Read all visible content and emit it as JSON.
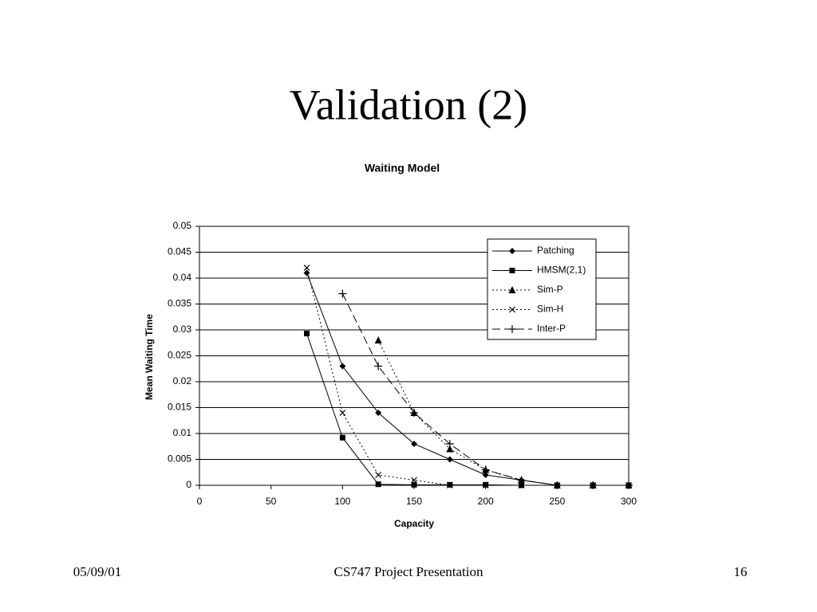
{
  "slide": {
    "title": "Validation (2)",
    "footer_left": "05/09/01",
    "footer_center": "CS747 Project Presentation",
    "footer_right": "16"
  },
  "chart_data": {
    "type": "line",
    "title": "Waiting Model",
    "x_label": "Capacity",
    "y_label": "Mean Waiting Time",
    "x": [
      75,
      100,
      125,
      150,
      175,
      200,
      225,
      250,
      275,
      300
    ],
    "series": [
      {
        "name": "Patching",
        "color": "#000000",
        "marker": "diamond",
        "line": "solid",
        "values": [
          0.041,
          0.023,
          0.014,
          0.008,
          0.005,
          0.002,
          0.001,
          0,
          0,
          0
        ]
      },
      {
        "name": "HMSM(2,1)",
        "color": "#000000",
        "marker": "square",
        "line": "solid",
        "values": [
          0.0293,
          0.0092,
          0.0002,
          0.0001,
          0.0001,
          0.0001,
          0,
          0,
          0,
          0
        ]
      },
      {
        "name": "Sim-P",
        "color": "#000000",
        "marker": "triangle",
        "line": "dotted",
        "values": [
          null,
          null,
          0.028,
          0.014,
          0.007,
          0.003,
          0.001,
          0,
          0,
          0
        ]
      },
      {
        "name": "Sim-H",
        "color": "#000000",
        "marker": "cross",
        "line": "dotted",
        "values": [
          0.042,
          0.014,
          0.002,
          0.001,
          0,
          0,
          0,
          0,
          0,
          0
        ]
      },
      {
        "name": "Inter-P",
        "color": "#000000",
        "marker": "plus",
        "line": "dashed",
        "values": [
          null,
          0.037,
          0.023,
          0.014,
          0.008,
          0.003,
          0.001,
          0,
          0,
          0
        ]
      }
    ],
    "xlim": [
      0,
      300
    ],
    "xticks": [
      0,
      50,
      100,
      150,
      200,
      250,
      300
    ],
    "ylim": [
      0,
      0.05
    ],
    "yticks": [
      0,
      0.005,
      0.01,
      0.015,
      0.02,
      0.025,
      0.03,
      0.035,
      0.04,
      0.045,
      0.05
    ],
    "grid": true,
    "legend": "upper right"
  }
}
